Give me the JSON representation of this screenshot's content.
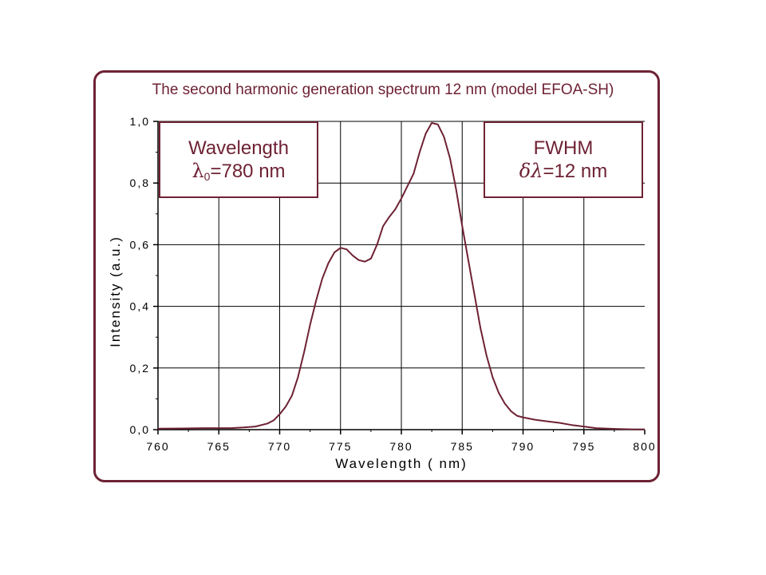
{
  "chart_data": {
    "type": "line",
    "title": "The second harmonic generation spectrum 12 nm (model EFOA-SH)",
    "xlabel": "Wavelength  ( nm)",
    "ylabel": "Intensity  (a.u.)",
    "xlim": [
      760,
      800
    ],
    "ylim": [
      0,
      1.0
    ],
    "xticks": [
      "760",
      "765",
      "770",
      "775",
      "780",
      "785",
      "790",
      "795",
      "800"
    ],
    "yticks": [
      "0,0",
      "0,2",
      "0,4",
      "0,6",
      "0,8",
      "1,0"
    ],
    "grid": true,
    "series": [
      {
        "color": "#6e2234",
        "x": [
          760,
          762,
          764,
          766,
          767,
          768,
          769,
          769.5,
          770,
          770.5,
          771,
          771.5,
          772,
          772.5,
          773,
          773.5,
          774,
          774.5,
          775,
          775.5,
          776,
          776.5,
          777,
          777.5,
          778,
          778.5,
          779,
          779.5,
          780,
          780.5,
          781,
          781.5,
          782,
          782.5,
          783,
          783.5,
          784,
          784.5,
          785,
          785.5,
          786,
          786.5,
          787,
          787.5,
          788,
          788.5,
          789,
          789.5,
          790,
          791,
          792,
          793,
          794,
          795,
          796,
          797,
          798,
          799,
          800
        ],
        "y": [
          0.003,
          0.004,
          0.005,
          0.005,
          0.007,
          0.01,
          0.02,
          0.03,
          0.05,
          0.075,
          0.11,
          0.17,
          0.25,
          0.34,
          0.42,
          0.49,
          0.54,
          0.575,
          0.59,
          0.585,
          0.565,
          0.55,
          0.545,
          0.555,
          0.6,
          0.66,
          0.69,
          0.715,
          0.75,
          0.79,
          0.83,
          0.9,
          0.96,
          0.995,
          0.99,
          0.95,
          0.88,
          0.78,
          0.66,
          0.55,
          0.44,
          0.33,
          0.24,
          0.17,
          0.12,
          0.085,
          0.06,
          0.045,
          0.04,
          0.032,
          0.027,
          0.022,
          0.015,
          0.01,
          0.005,
          0.003,
          0.002,
          0.001,
          0.001
        ]
      }
    ]
  },
  "callouts": {
    "wavelength": {
      "title": "Wavelength",
      "symbol": "λ",
      "subscript": "0",
      "value": "=780 nm"
    },
    "fwhm": {
      "title": "FWHM",
      "symbol": "δλ",
      "value": "=12 nm"
    }
  }
}
